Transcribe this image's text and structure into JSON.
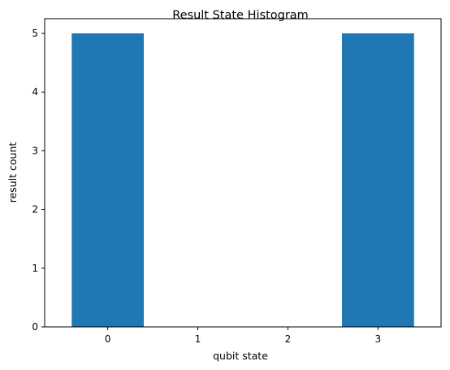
{
  "chart_data": {
    "type": "bar",
    "title": "Result State Histogram",
    "xlabel": "qubit state",
    "ylabel": "result count",
    "categories": [
      "0",
      "1",
      "2",
      "3"
    ],
    "values": [
      5,
      0,
      0,
      5
    ],
    "ylim": [
      0,
      5.25
    ],
    "yticks": [
      "0",
      "1",
      "2",
      "3",
      "4",
      "5"
    ],
    "bar_color": "#1f77b4",
    "grid": false,
    "legend": "none"
  }
}
